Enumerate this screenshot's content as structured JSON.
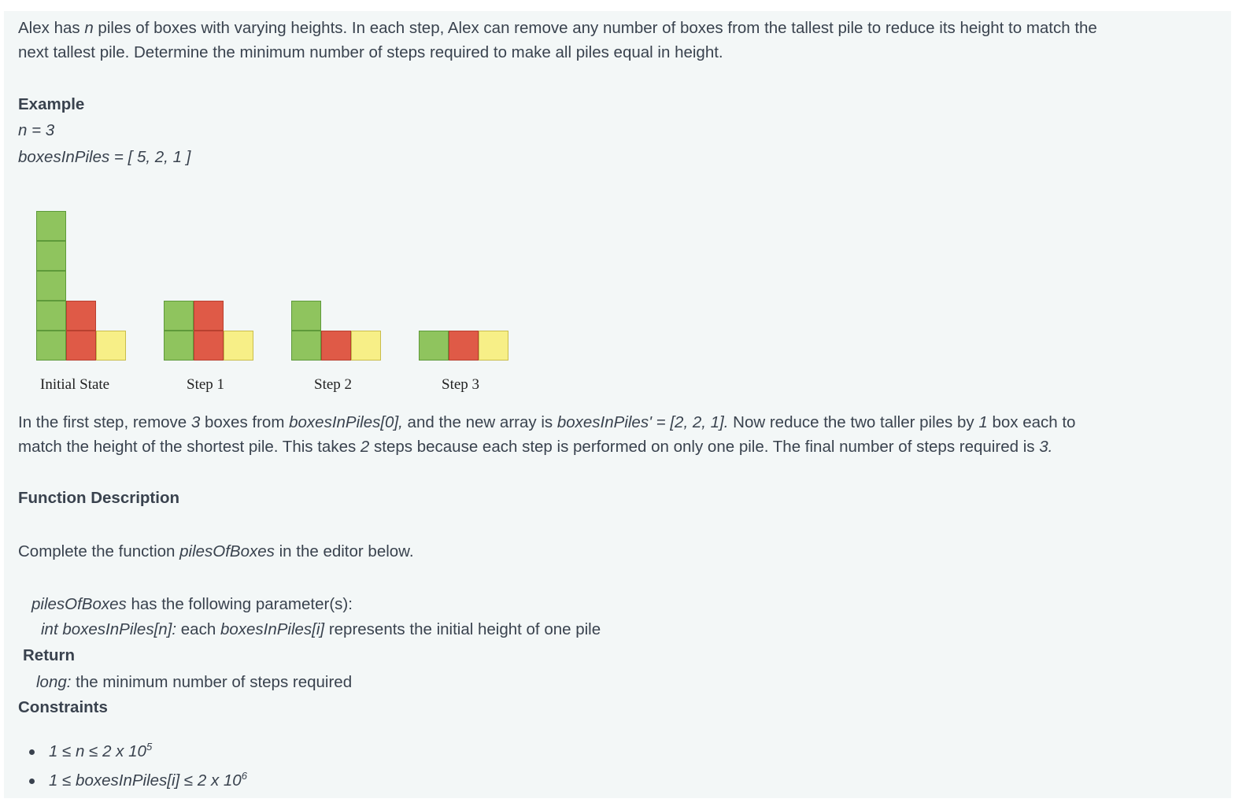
{
  "intro": {
    "p1": "Alex has ",
    "n": "n",
    "p2": " piles of boxes with varying heights. In each step, Alex can remove any number of boxes from the tallest pile to reduce its height to match the",
    "line2": "next tallest pile. Determine the minimum number of steps required to make all piles equal in height."
  },
  "example": {
    "heading": "Example",
    "n_line": "n = 3",
    "arr_line": "boxesInPiles = [ 5, 2, 1 ]"
  },
  "figure": {
    "colors": {
      "green": "#8fc45e",
      "red": "#df5a47",
      "yellow": "#f7ef87",
      "green_border": "#5e9a3a",
      "red_border": "#b8402f",
      "yellow_border": "#c9bd4c"
    },
    "states": [
      {
        "label": "Initial State",
        "piles": [
          5,
          2,
          1
        ]
      },
      {
        "label": "Step 1",
        "piles": [
          2,
          2,
          1
        ]
      },
      {
        "label": "Step 2",
        "piles": [
          2,
          1,
          1
        ]
      },
      {
        "label": "Step 3",
        "piles": [
          1,
          1,
          1
        ]
      }
    ]
  },
  "explanation": {
    "a1": "In the first step, remove ",
    "a2": "3",
    "a3": " boxes from ",
    "a4": "boxesInPiles[0],",
    "a5": " and the new array is ",
    "a6": "boxesInPiles' = [2, 2, 1].",
    "a7": "  Now reduce the two taller piles by ",
    "a8": "1",
    "a9": " box each to",
    "b1": "match the height of the shortest pile.  This takes ",
    "b2": "2",
    "b3": " steps because each step is performed on only one pile.  The final number of steps required is ",
    "b4": "3."
  },
  "function_description": {
    "heading": "Function Description",
    "c1": "Complete the function ",
    "c2": "pilesOfBoxes",
    "c3": " in the editor below.",
    "d1": "pilesOfBoxes",
    "d2": " has the following parameter(s):",
    "e1": "int boxesInPiles[n]:",
    "e2": " each ",
    "e3": "boxesInPiles[i]",
    "e4": " represents the initial height of one pile"
  },
  "return_section": {
    "heading": "Return",
    "type": "long:",
    "desc": "  the minimum number of steps required"
  },
  "constraints": {
    "heading": "Constraints",
    "c1_base": "1 ≤ n ≤ 2 x 10",
    "c1_exp": "5",
    "c2_base": "1 ≤ boxesInPiles[i] ≤ 2 x 10",
    "c2_exp": "6"
  }
}
